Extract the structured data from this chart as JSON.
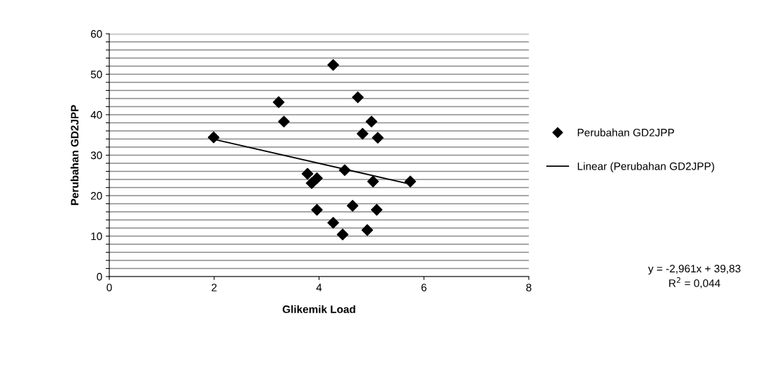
{
  "chart_data": {
    "type": "scatter",
    "xlabel": "Glikemik Load",
    "ylabel": "Perubahan GD2JPP",
    "x": [
      1.99,
      3.23,
      3.33,
      4.27,
      4.74,
      5.0,
      4.83,
      5.12,
      4.49,
      3.78,
      3.86,
      3.96,
      5.03,
      5.74,
      3.96,
      4.64,
      5.1,
      4.27,
      4.45,
      4.92
    ],
    "series": [
      {
        "name": "Perubahan GD2JPP",
        "color": "#000000",
        "marker": "diamond",
        "values": [
          34.4,
          43.1,
          38.3,
          52.3,
          44.3,
          38.3,
          35.3,
          34.3,
          26.3,
          25.4,
          23.1,
          24.3,
          23.5,
          23.5,
          16.5,
          17.5,
          16.5,
          13.3,
          10.4,
          11.5
        ]
      },
      {
        "name": "Linear (Perubahan GD2JPP)",
        "type": "line",
        "color": "#000000",
        "marker": "none",
        "x": [
          1.99,
          5.74
        ],
        "values": [
          33.94,
          22.83
        ]
      }
    ],
    "xlim": [
      0,
      8
    ],
    "xticks": [
      0,
      2,
      4,
      6,
      8
    ],
    "ylim": [
      0,
      60
    ],
    "yticks": [
      0,
      {
        "value": 2,
        "label": null
      },
      {
        "value": 4,
        "label": null
      },
      {
        "value": 6,
        "label": null
      },
      {
        "value": 8,
        "label": null
      },
      10,
      {
        "value": 12,
        "label": null
      },
      {
        "value": 14,
        "label": null
      },
      {
        "value": 16,
        "label": null
      },
      {
        "value": 18,
        "label": null
      },
      20,
      {
        "value": 22,
        "label": null
      },
      {
        "value": 24,
        "label": null
      },
      {
        "value": 26,
        "label": null
      },
      {
        "value": 28,
        "label": null
      },
      30,
      {
        "value": 32,
        "label": null
      },
      {
        "value": 34,
        "label": null
      },
      {
        "value": 36,
        "label": null
      },
      {
        "value": 38,
        "label": null
      },
      40,
      {
        "value": 42,
        "label": null
      },
      {
        "value": 44,
        "label": null
      },
      {
        "value": 46,
        "label": null
      },
      {
        "value": 48,
        "label": null
      },
      50,
      {
        "value": 52,
        "label": null
      },
      {
        "value": 54,
        "label": null
      },
      {
        "value": 56,
        "label": null
      },
      {
        "value": 58,
        "label": null
      },
      60
    ],
    "grid": "y",
    "legend": "right",
    "annotations": [
      "y = -2,961x + 39,83",
      "R$^{2}$ = 0,044"
    ]
  }
}
